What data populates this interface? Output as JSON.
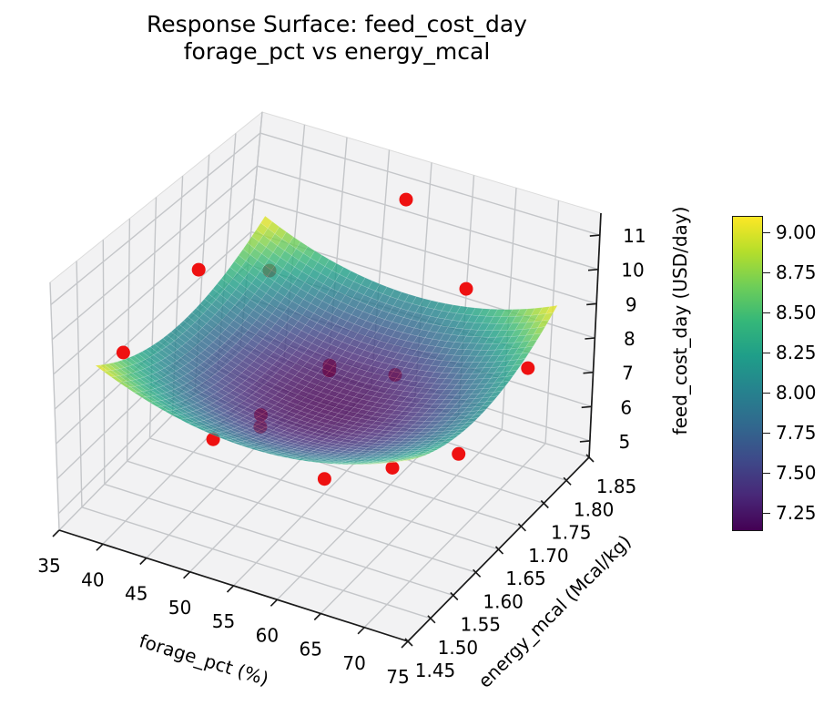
{
  "title": {
    "line1": "Response Surface: feed_cost_day",
    "line2": "forage_pct vs energy_mcal"
  },
  "chart_data": {
    "type": "surface3d_with_scatter3d",
    "x_axis": {
      "label": "forage_pct (%)",
      "min": 35,
      "max": 75,
      "ticks": [
        {
          "v": 35,
          "label": "35"
        },
        {
          "v": 40,
          "label": "40"
        },
        {
          "v": 45,
          "label": "45"
        },
        {
          "v": 50,
          "label": "50"
        },
        {
          "v": 55,
          "label": "55"
        },
        {
          "v": 60,
          "label": "60"
        },
        {
          "v": 65,
          "label": "65"
        },
        {
          "v": 70,
          "label": "70"
        },
        {
          "v": 75,
          "label": "75"
        }
      ]
    },
    "y_axis": {
      "label": "energy_mcal (Mcal/kg)",
      "min": 1.45,
      "max": 1.85,
      "ticks": [
        {
          "v": 1.45,
          "label": "1.45"
        },
        {
          "v": 1.5,
          "label": "1.50"
        },
        {
          "v": 1.55,
          "label": "1.55"
        },
        {
          "v": 1.6,
          "label": "1.60"
        },
        {
          "v": 1.65,
          "label": "1.65"
        },
        {
          "v": 1.7,
          "label": "1.70"
        },
        {
          "v": 1.75,
          "label": "1.75"
        },
        {
          "v": 1.8,
          "label": "1.80"
        },
        {
          "v": 1.85,
          "label": "1.85"
        }
      ]
    },
    "z_axis": {
      "label": "feed_cost_day (USD/day)",
      "min": 4.52,
      "max": 11.64,
      "ticks": [
        {
          "v": 5,
          "label": "5"
        },
        {
          "v": 6,
          "label": "6"
        },
        {
          "v": 7,
          "label": "7"
        },
        {
          "v": 8,
          "label": "8"
        },
        {
          "v": 9,
          "label": "9"
        },
        {
          "v": 10,
          "label": "10"
        },
        {
          "v": 11,
          "label": "11"
        }
      ]
    },
    "surface": {
      "colormap": "viridis",
      "opacity": 0.8,
      "x_range": [
        38,
        72
      ],
      "y_range": [
        1.48,
        1.82
      ],
      "z_min": 7.12,
      "z_max": 9.12,
      "model": "z = 7.12 + ((x-55)/17)^2 + ((y-1.65)/0.17)^2"
    },
    "scatter": {
      "color": "#ee1111",
      "points": [
        {
          "x": 55,
          "y": 1.8,
          "z": 11.2
        },
        {
          "x": 40,
          "y": 1.65,
          "z": 9.9
        },
        {
          "x": 65,
          "y": 1.75,
          "z": 10.0
        },
        {
          "x": 40,
          "y": 1.5,
          "z": 9.4
        },
        {
          "x": 70,
          "y": 1.8,
          "z": 7.4
        },
        {
          "x": 50,
          "y": 1.5,
          "z": 7.7
        },
        {
          "x": 60,
          "y": 1.55,
          "z": 6.7
        },
        {
          "x": 70,
          "y": 1.5,
          "z": 8.5
        },
        {
          "x": 70,
          "y": 1.65,
          "z": 6.9
        },
        {
          "x": 40,
          "y": 1.8,
          "z": 7.9
        },
        {
          "x": 50,
          "y": 1.75,
          "z": 6.55
        },
        {
          "x": 50,
          "y": 1.75,
          "z": 6.4
        },
        {
          "x": 55,
          "y": 1.8,
          "z": 6.0
        },
        {
          "x": 45,
          "y": 1.7,
          "z": 5.35
        },
        {
          "x": 45,
          "y": 1.7,
          "z": 5.0
        }
      ]
    },
    "colorbar": {
      "vmin": 7.14,
      "vmax": 9.11,
      "ticks": [
        {
          "v": 7.25,
          "label": "7.25"
        },
        {
          "v": 7.5,
          "label": "7.50"
        },
        {
          "v": 7.75,
          "label": "7.75"
        },
        {
          "v": 8.0,
          "label": "8.00"
        },
        {
          "v": 8.25,
          "label": "8.25"
        },
        {
          "v": 8.5,
          "label": "8.50"
        },
        {
          "v": 8.75,
          "label": "8.75"
        },
        {
          "v": 9.0,
          "label": "9.00"
        }
      ]
    }
  },
  "colors": {
    "background": "#ffffff",
    "pane": "#f2f2f3",
    "grid": "#c4c6c9",
    "spine": "#1a1a1a",
    "text": "#000000",
    "scatter": "#ee1111"
  }
}
